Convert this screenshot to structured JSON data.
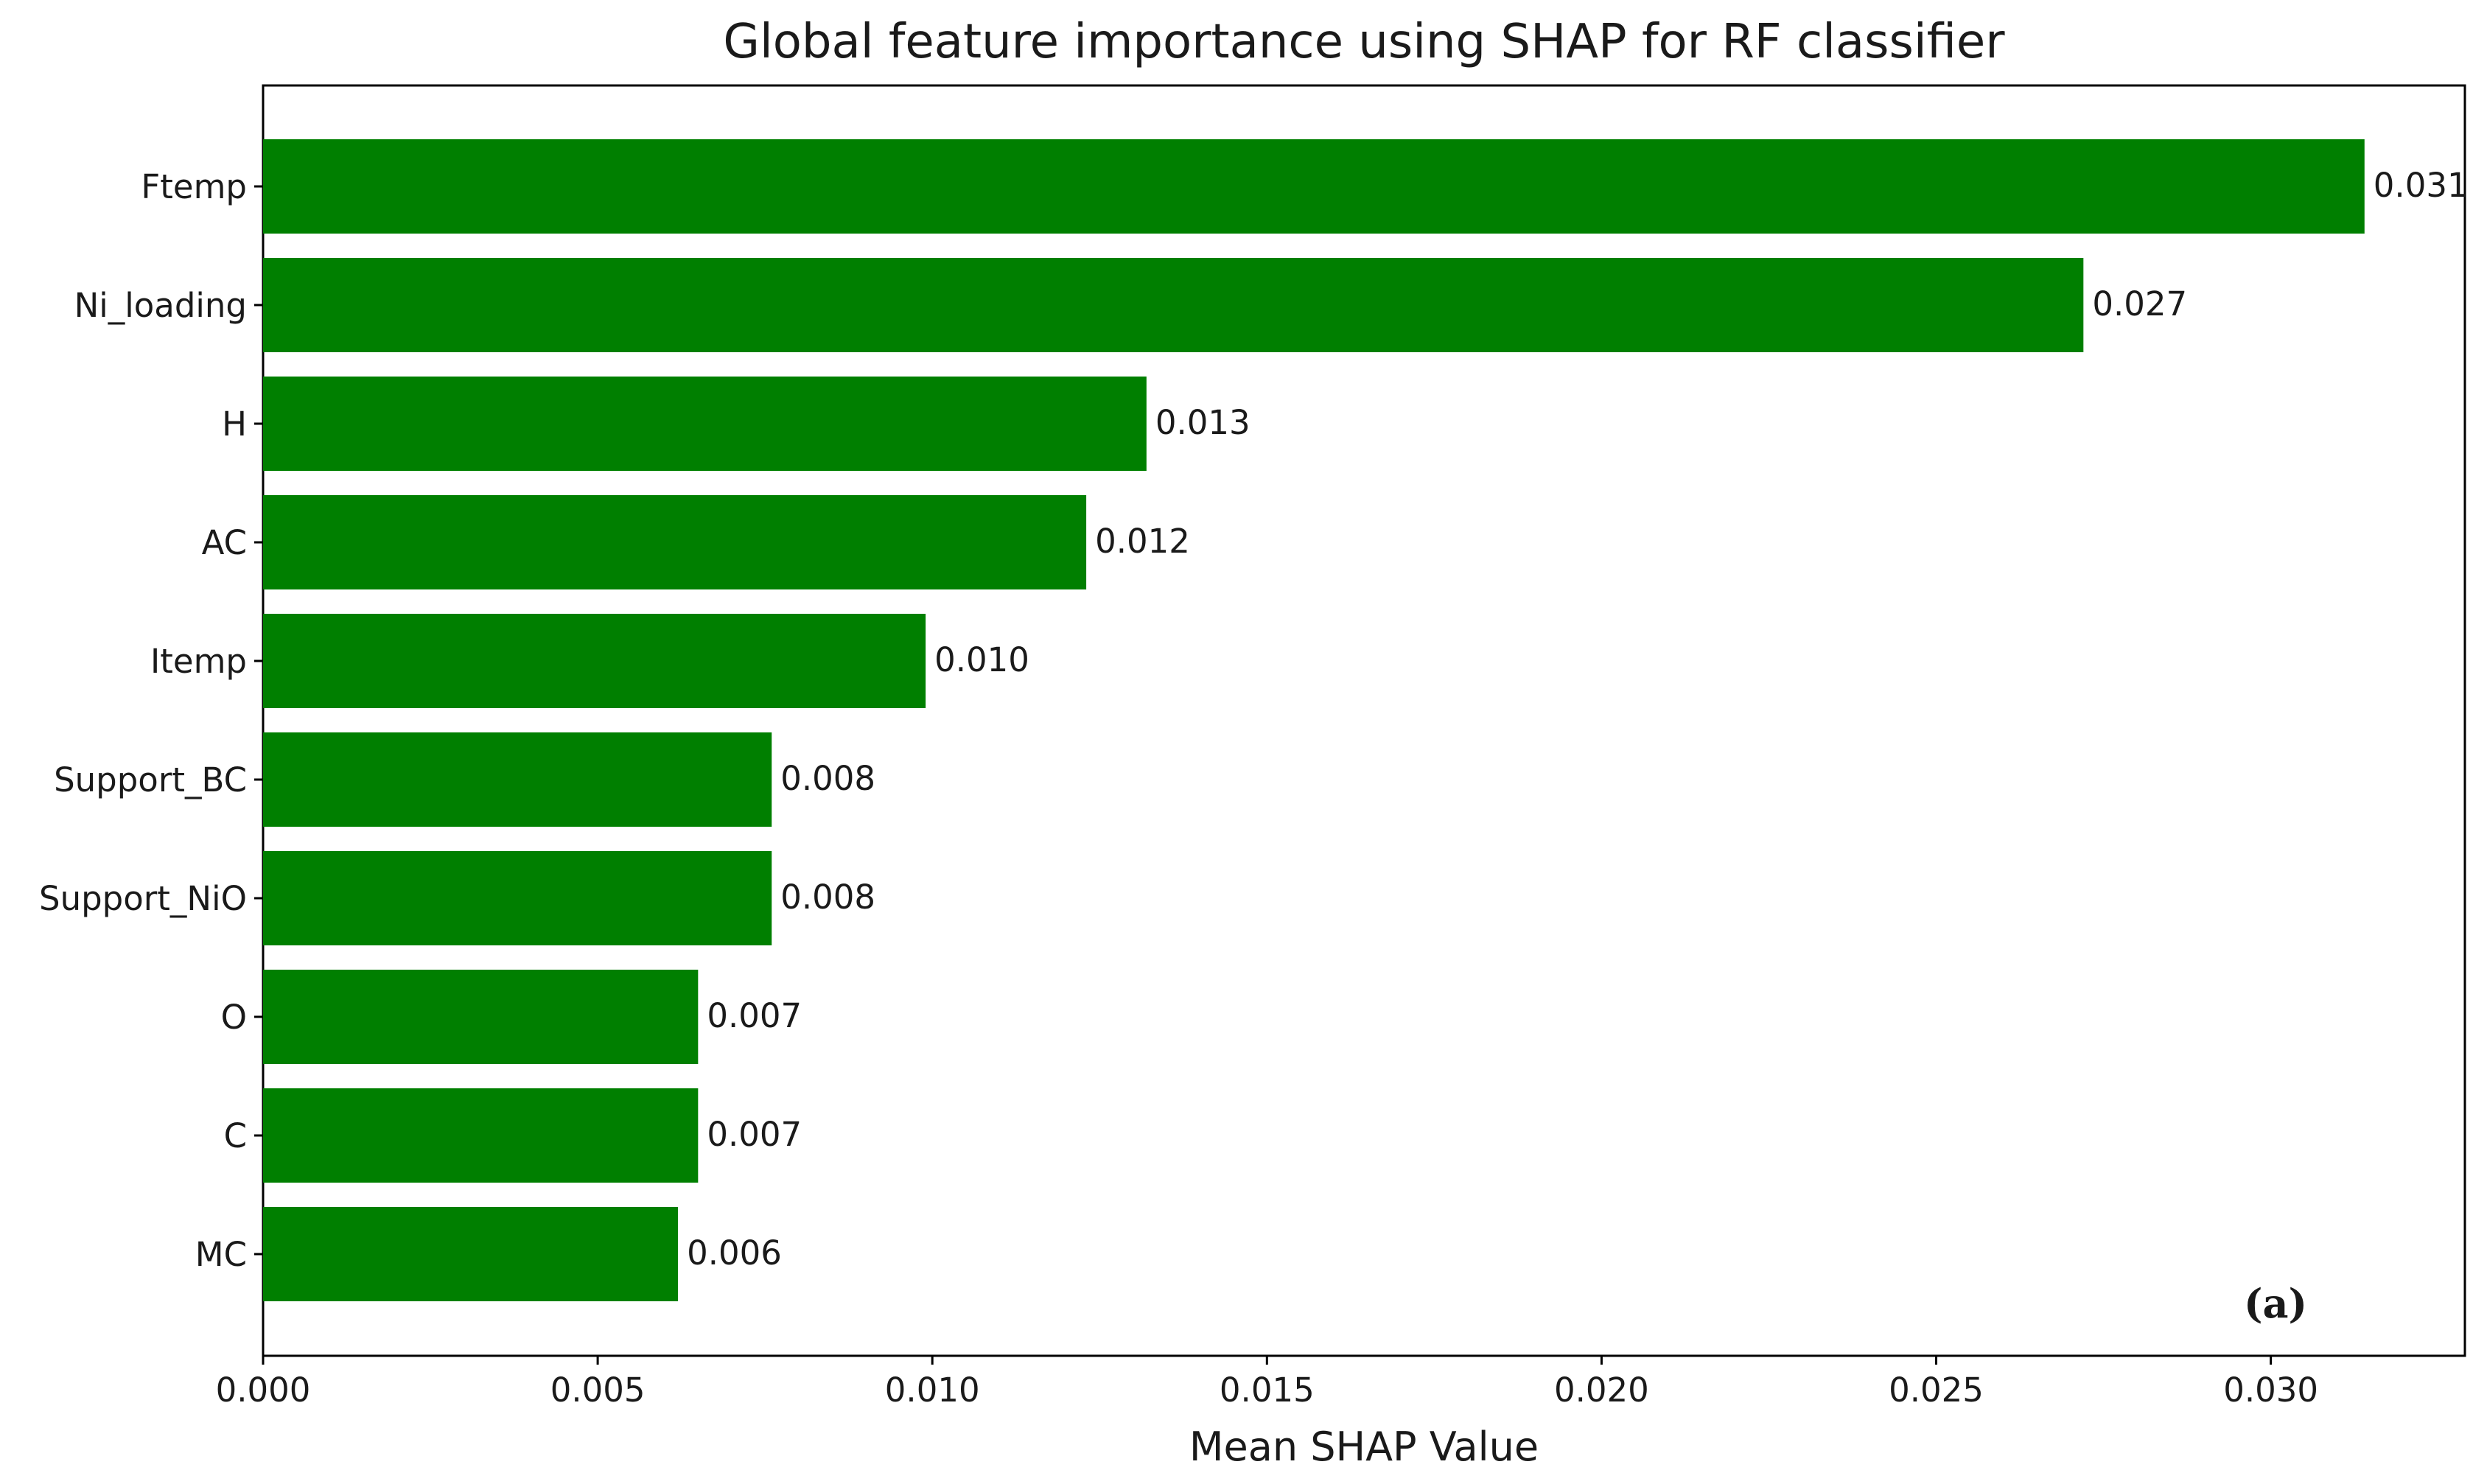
{
  "chart_data": {
    "type": "bar",
    "orientation": "horizontal",
    "title": "Global feature importance using SHAP for RF classifier",
    "xlabel": "Mean SHAP Value",
    "ylabel": "",
    "panel_label": "(a)",
    "bar_color": "#007f00",
    "grid": false,
    "xlim": [
      0,
      0.0329
    ],
    "xticks": [
      "0.000",
      "0.005",
      "0.010",
      "0.015",
      "0.020",
      "0.025",
      "0.030"
    ],
    "categories": [
      "Ftemp",
      "Ni_loading",
      "H",
      "AC",
      "Itemp",
      "Support_BC",
      "Support_NiO",
      "O",
      "C",
      "MC"
    ],
    "values": [
      0.0314,
      0.0272,
      0.0132,
      0.0123,
      0.0099,
      0.0076,
      0.0076,
      0.0065,
      0.0065,
      0.0062
    ],
    "value_labels": [
      "0.031",
      "0.027",
      "0.013",
      "0.012",
      "0.010",
      "0.008",
      "0.008",
      "0.007",
      "0.007",
      "0.006"
    ]
  }
}
